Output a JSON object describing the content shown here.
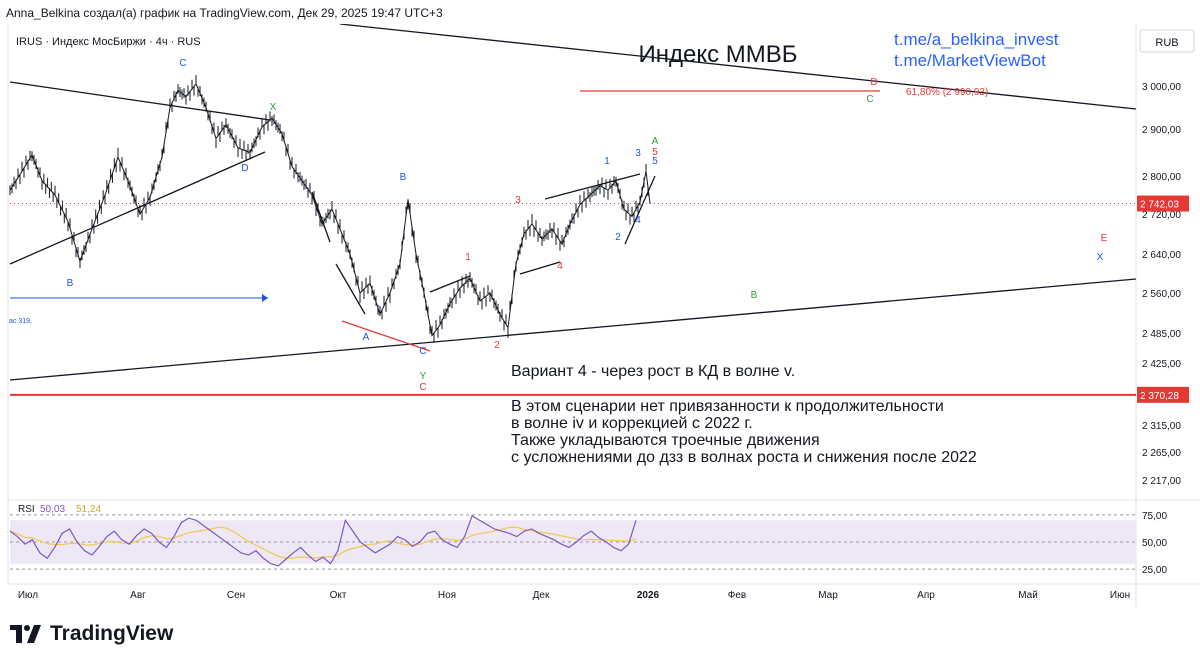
{
  "header": {
    "attribution": "Anna_Belkina создал(а) график на TradingView.com, Дек 29, 2025 19:47 UTC+3"
  },
  "chart_data": {
    "type": "candlestick",
    "symbol_line": "IRUS · Индекс МосБиржи · 4ч · RUS",
    "currency": "RUB",
    "title": "Индекс ММВБ",
    "links": [
      "t.me/a_belkina_invest",
      "t.me/MarketViewBot"
    ],
    "y_ticks": [
      3000,
      2900,
      2800,
      2720,
      2640,
      2560,
      2485,
      2425,
      2315,
      2265,
      2217
    ],
    "y_tick_labels": [
      "3 000,00",
      "2 900,00",
      "2 800,00",
      "2 720,00",
      "2 640,00",
      "2 560,00",
      "2 485,00",
      "2 425,00",
      "2 315,00",
      "2 265,00",
      "2 217,00"
    ],
    "x_ticks": [
      "Июл",
      "Авг",
      "Сен",
      "Окт",
      "Ноя",
      "Дек",
      "2026",
      "Фев",
      "Мар",
      "Апр",
      "Май",
      "Июн"
    ],
    "price_series": [
      {
        "t": 0,
        "p": 2770
      },
      {
        "t": 12,
        "p": 2810
      },
      {
        "t": 22,
        "p": 2845
      },
      {
        "t": 32,
        "p": 2790
      },
      {
        "t": 45,
        "p": 2760
      },
      {
        "t": 58,
        "p": 2705
      },
      {
        "t": 70,
        "p": 2625
      },
      {
        "t": 82,
        "p": 2690
      },
      {
        "t": 95,
        "p": 2760
      },
      {
        "t": 108,
        "p": 2840
      },
      {
        "t": 118,
        "p": 2790
      },
      {
        "t": 130,
        "p": 2720
      },
      {
        "t": 140,
        "p": 2755
      },
      {
        "t": 152,
        "p": 2840
      },
      {
        "t": 160,
        "p": 2950
      },
      {
        "t": 168,
        "p": 2990
      },
      {
        "t": 176,
        "p": 2975
      },
      {
        "t": 186,
        "p": 3005
      },
      {
        "t": 196,
        "p": 2950
      },
      {
        "t": 206,
        "p": 2880
      },
      {
        "t": 216,
        "p": 2910
      },
      {
        "t": 228,
        "p": 2860
      },
      {
        "t": 240,
        "p": 2850
      },
      {
        "t": 252,
        "p": 2905
      },
      {
        "t": 262,
        "p": 2925
      },
      {
        "t": 272,
        "p": 2890
      },
      {
        "t": 282,
        "p": 2820
      },
      {
        "t": 292,
        "p": 2790
      },
      {
        "t": 302,
        "p": 2760
      },
      {
        "t": 312,
        "p": 2700
      },
      {
        "t": 322,
        "p": 2730
      },
      {
        "t": 330,
        "p": 2690
      },
      {
        "t": 340,
        "p": 2640
      },
      {
        "t": 350,
        "p": 2560
      },
      {
        "t": 360,
        "p": 2580
      },
      {
        "t": 370,
        "p": 2520
      },
      {
        "t": 380,
        "p": 2560
      },
      {
        "t": 390,
        "p": 2620
      },
      {
        "t": 398,
        "p": 2750
      },
      {
        "t": 406,
        "p": 2640
      },
      {
        "t": 414,
        "p": 2560
      },
      {
        "t": 422,
        "p": 2480
      },
      {
        "t": 430,
        "p": 2500
      },
      {
        "t": 440,
        "p": 2540
      },
      {
        "t": 450,
        "p": 2570
      },
      {
        "t": 460,
        "p": 2590
      },
      {
        "t": 470,
        "p": 2545
      },
      {
        "t": 480,
        "p": 2560
      },
      {
        "t": 490,
        "p": 2520
      },
      {
        "t": 498,
        "p": 2495
      },
      {
        "t": 506,
        "p": 2620
      },
      {
        "t": 514,
        "p": 2680
      },
      {
        "t": 522,
        "p": 2700
      },
      {
        "t": 532,
        "p": 2670
      },
      {
        "t": 542,
        "p": 2690
      },
      {
        "t": 552,
        "p": 2660
      },
      {
        "t": 560,
        "p": 2700
      },
      {
        "t": 570,
        "p": 2740
      },
      {
        "t": 580,
        "p": 2760
      },
      {
        "t": 590,
        "p": 2780
      },
      {
        "t": 598,
        "p": 2770
      },
      {
        "t": 606,
        "p": 2790
      },
      {
        "t": 614,
        "p": 2730
      },
      {
        "t": 622,
        "p": 2715
      },
      {
        "t": 630,
        "p": 2745
      },
      {
        "t": 636,
        "p": 2810
      },
      {
        "t": 640,
        "p": 2742
      }
    ],
    "last_price": 2742.03,
    "last_price_label": "2 742,03",
    "support_level": 2370.28,
    "support_label": "2 370,28",
    "fib_label": "61,80% (2 990,93)",
    "wave_labels": {
      "blue": [
        "C",
        "D",
        "B",
        "A",
        "C",
        "B",
        "1",
        "2",
        "3",
        "4",
        "5",
        "X"
      ],
      "red": [
        "1",
        "2",
        "3",
        "4",
        "5",
        "C",
        "D",
        "E"
      ],
      "green": [
        "X",
        "Y",
        "A",
        "B",
        "C"
      ]
    },
    "small_label": "ас 319,",
    "annotation": {
      "heading": "Вариант 4 - через рост в КД в волне v.",
      "lines": [
        "В этом сценарии нет привязанности к продолжительности",
        "в волне iv и коррекцией с 2022 г.",
        "Также укладываются троечные движения",
        "с усложнениями до дзз в волнах роста и снижения после 2022"
      ]
    },
    "rsi": {
      "label": "RSI",
      "value": "50,03",
      "ma_value": "51,24",
      "levels": [
        "75,00",
        "50,00",
        "25,00"
      ],
      "series": [
        60,
        55,
        48,
        52,
        40,
        35,
        45,
        58,
        62,
        50,
        42,
        38,
        46,
        55,
        60,
        52,
        48,
        56,
        62,
        58,
        50,
        45,
        55,
        68,
        72,
        70,
        65,
        60,
        55,
        50,
        45,
        40,
        38,
        42,
        35,
        30,
        28,
        34,
        40,
        45,
        38,
        32,
        36,
        30,
        42,
        70,
        60,
        50,
        45,
        40,
        44,
        48,
        55,
        52,
        46,
        50,
        58,
        60,
        52,
        48,
        45,
        55,
        74,
        70,
        66,
        62,
        60,
        58,
        55,
        60,
        62,
        58,
        55,
        52,
        48,
        45,
        50,
        56,
        60,
        54,
        50,
        45,
        42,
        48,
        70
      ]
    },
    "footer_brand": "TradingView",
    "colors": {
      "blue_label": "#1e53e5",
      "red_label": "#e53935",
      "green_label": "#2e9e3a",
      "rsi_line": "#7e57c2",
      "rsi_ma": "#f2c94c",
      "link": "#2962ff",
      "support": "#e53935",
      "price_dotted": "#e53935"
    }
  }
}
